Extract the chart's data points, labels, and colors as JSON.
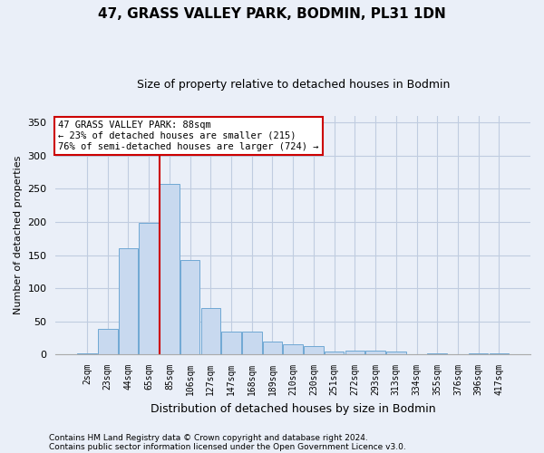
{
  "title": "47, GRASS VALLEY PARK, BODMIN, PL31 1DN",
  "subtitle": "Size of property relative to detached houses in Bodmin",
  "xlabel": "Distribution of detached houses by size in Bodmin",
  "ylabel": "Number of detached properties",
  "footnote1": "Contains HM Land Registry data © Crown copyright and database right 2024.",
  "footnote2": "Contains public sector information licensed under the Open Government Licence v3.0.",
  "categories": [
    "2sqm",
    "23sqm",
    "44sqm",
    "65sqm",
    "85sqm",
    "106sqm",
    "127sqm",
    "147sqm",
    "168sqm",
    "189sqm",
    "210sqm",
    "230sqm",
    "251sqm",
    "272sqm",
    "293sqm",
    "313sqm",
    "334sqm",
    "355sqm",
    "376sqm",
    "396sqm",
    "417sqm"
  ],
  "values": [
    1,
    38,
    160,
    198,
    258,
    142,
    70,
    35,
    35,
    20,
    15,
    12,
    5,
    6,
    6,
    4,
    0,
    1,
    0,
    2,
    1
  ],
  "bar_color": "#c8d9ef",
  "bar_edge_color": "#6fa8d4",
  "grid_color": "#c0cce0",
  "background_color": "#eaeff8",
  "vline_index": 3,
  "vline_color": "#cc0000",
  "annotation_line1": "47 GRASS VALLEY PARK: 88sqm",
  "annotation_line2": "← 23% of detached houses are smaller (215)",
  "annotation_line3": "76% of semi-detached houses are larger (724) →",
  "annotation_box_facecolor": "white",
  "annotation_box_edgecolor": "#cc0000",
  "ylim": [
    0,
    360
  ],
  "yticks": [
    0,
    50,
    100,
    150,
    200,
    250,
    300,
    350
  ],
  "title_fontsize": 11,
  "subtitle_fontsize": 9,
  "ylabel_fontsize": 8,
  "xlabel_fontsize": 9,
  "tick_fontsize": 7,
  "ytick_fontsize": 8,
  "footnote_fontsize": 6.5
}
